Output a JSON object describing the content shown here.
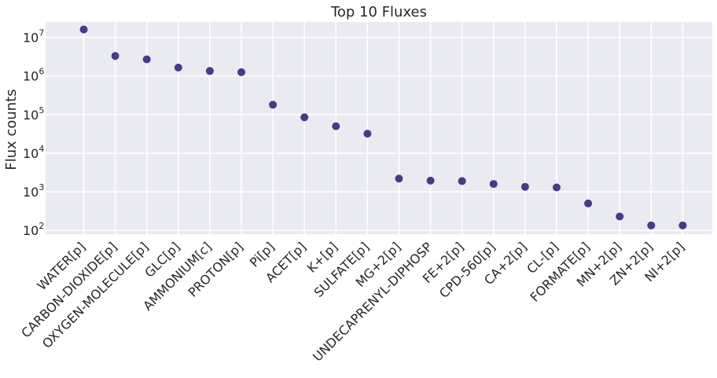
{
  "chart_data": {
    "type": "scatter",
    "title": "Top 10 Fluxes",
    "xlabel": "",
    "ylabel": "Flux counts",
    "yscale": "log",
    "ylim": [
      80,
      25000000
    ],
    "yticks": [
      {
        "value": 100,
        "base": "10",
        "exp": "2"
      },
      {
        "value": 1000,
        "base": "10",
        "exp": "3"
      },
      {
        "value": 10000,
        "base": "10",
        "exp": "4"
      },
      {
        "value": 100000,
        "base": "10",
        "exp": "5"
      },
      {
        "value": 1000000,
        "base": "10",
        "exp": "6"
      },
      {
        "value": 10000000,
        "base": "10",
        "exp": "7"
      }
    ],
    "grid": true,
    "marker_color": "#483a86",
    "background_color": "#eaeaf2",
    "categories": [
      "WATER[p]",
      "CARBON-DIOXIDE[p]",
      "OXYGEN-MOLECULE[p]",
      "GLC[p]",
      "AMMONIUM[c]",
      "PROTON[p]",
      "Pi[p]",
      "ACET[p]",
      "K+[p]",
      "SULFATE[p]",
      "MG+2[p]",
      "UNDECAPRENYL-DIPHOSP",
      "FE+2[p]",
      "CPD-560[p]",
      "CA+2[p]",
      "CL-[p]",
      "FORMATE[p]",
      "MN+2[p]",
      "ZN+2[p]",
      "NI+2[p]"
    ],
    "values": [
      16000000,
      3300000,
      2700000,
      1650000,
      1350000,
      1250000,
      180000,
      85000,
      50000,
      32000,
      2200,
      1950,
      1900,
      1600,
      1350,
      1300,
      500,
      230,
      135,
      135
    ]
  }
}
